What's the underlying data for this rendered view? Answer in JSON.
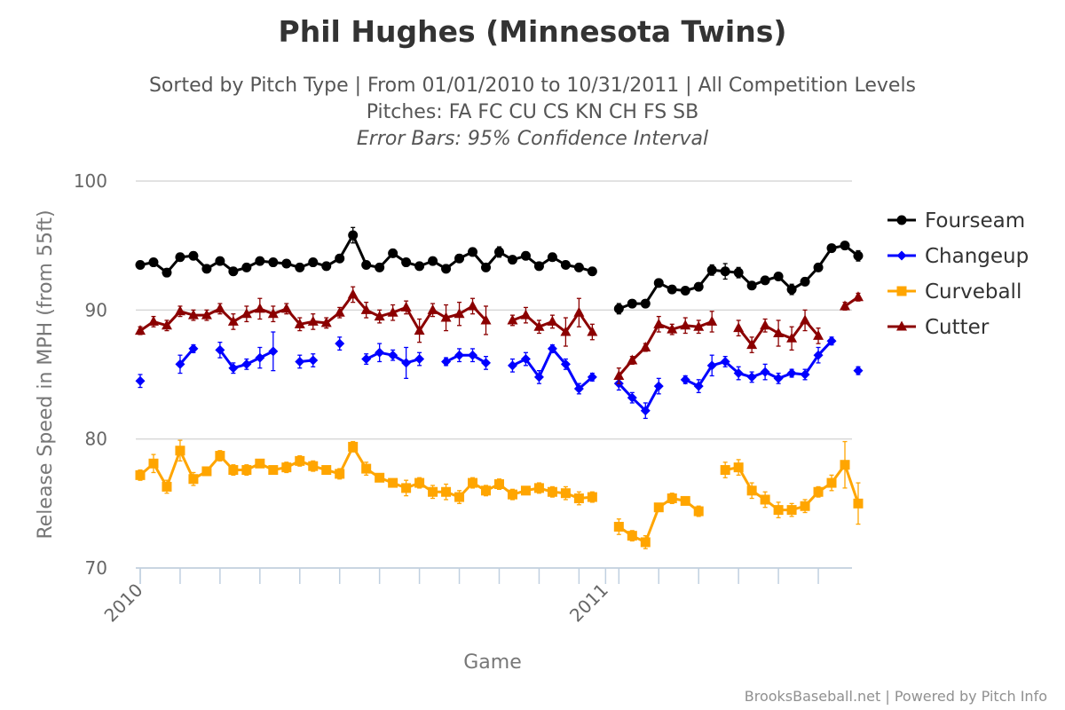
{
  "header": {
    "title": "Phil Hughes (Minnesota Twins)",
    "subtitle_line1": "Sorted by Pitch Type | From 01/01/2010 to 10/31/2011 | All Competition Levels",
    "subtitle_line2": "Pitches: FA FC CU CS KN CH FS SB",
    "subtitle_line3": "Error Bars: 95% Confidence Interval"
  },
  "credits": "BrooksBaseball.net | Powered by Pitch Info",
  "chart_data": {
    "type": "line",
    "title": "Phil Hughes (Minnesota Twins)",
    "xlabel": "Game",
    "ylabel": "Release Speed in MPH (from 55ft)",
    "ylim": [
      70,
      100
    ],
    "yticks": [
      70,
      80,
      90,
      100
    ],
    "xlim": [
      0,
      53
    ],
    "xticks": [
      {
        "x": 0,
        "label": "2010"
      },
      {
        "x": 35,
        "label": "2011"
      }
    ],
    "grid": true,
    "legend": "right",
    "series": [
      {
        "name": "Fourseam",
        "color": "#000000",
        "marker": "circle",
        "values": [
          93.5,
          93.7,
          92.9,
          94.1,
          94.2,
          93.2,
          93.8,
          93.0,
          93.3,
          93.8,
          93.7,
          93.6,
          93.3,
          93.7,
          93.4,
          94.0,
          95.8,
          93.5,
          93.3,
          94.4,
          93.7,
          93.4,
          93.8,
          93.2,
          94.0,
          94.5,
          93.3,
          94.5,
          93.9,
          94.2,
          93.4,
          94.1,
          93.5,
          93.3,
          93.0,
          null,
          90.1,
          90.5,
          90.5,
          92.1,
          91.6,
          91.5,
          91.8,
          93.1,
          93.0,
          92.9,
          91.9,
          92.3,
          92.6,
          91.6,
          92.2,
          93.3,
          94.8,
          95.0,
          94.2
        ],
        "errors": [
          0.3,
          0.3,
          0.3,
          0.3,
          0.3,
          0.3,
          0.3,
          0.3,
          0.3,
          0.3,
          0.3,
          0.3,
          0.3,
          0.3,
          0.3,
          0.3,
          0.6,
          0.3,
          0.3,
          0.3,
          0.3,
          0.3,
          0.3,
          0.3,
          0.3,
          0.3,
          0.3,
          0.4,
          0.3,
          0.3,
          0.3,
          0.3,
          0.3,
          0.3,
          0.3,
          null,
          0.4,
          0.3,
          0.3,
          0.3,
          0.3,
          0.3,
          0.3,
          0.4,
          0.6,
          0.4,
          0.3,
          0.3,
          0.3,
          0.4,
          0.3,
          0.3,
          0.3,
          0.3,
          0.4
        ]
      },
      {
        "name": "Changeup",
        "color": "#0000ff",
        "marker": "diamond",
        "values": [
          84.5,
          null,
          null,
          85.8,
          87.0,
          null,
          86.9,
          85.5,
          85.8,
          86.3,
          86.8,
          null,
          86.0,
          86.1,
          null,
          87.4,
          null,
          86.2,
          86.7,
          86.5,
          85.9,
          86.2,
          null,
          86.0,
          86.5,
          86.5,
          85.9,
          null,
          85.7,
          86.2,
          84.8,
          87.0,
          85.8,
          83.9,
          84.8,
          null,
          84.3,
          83.2,
          82.2,
          84.1,
          null,
          84.6,
          84.1,
          85.7,
          86.0,
          85.1,
          84.8,
          85.2,
          84.7,
          85.1,
          85.0,
          86.5,
          87.6,
          null,
          85.3
        ],
        "errors": [
          0.5,
          null,
          null,
          0.7,
          0.3,
          null,
          0.6,
          0.4,
          0.4,
          0.8,
          1.5,
          null,
          0.5,
          0.5,
          null,
          0.5,
          null,
          0.4,
          0.7,
          0.4,
          1.2,
          0.5,
          null,
          0.3,
          0.5,
          0.5,
          0.5,
          null,
          0.5,
          0.5,
          0.5,
          0.3,
          0.4,
          0.4,
          0.3,
          null,
          0.5,
          0.4,
          0.6,
          0.6,
          null,
          0.3,
          0.5,
          0.8,
          0.4,
          0.5,
          0.4,
          0.6,
          0.4,
          0.3,
          0.4,
          0.6,
          0.3,
          null,
          0.3
        ]
      },
      {
        "name": "Curveball",
        "color": "#ffa500",
        "marker": "square",
        "values": [
          77.2,
          78.1,
          76.3,
          79.1,
          76.9,
          77.5,
          78.7,
          77.6,
          77.6,
          78.1,
          77.6,
          77.8,
          78.3,
          77.9,
          77.6,
          77.3,
          79.4,
          77.7,
          77.0,
          76.6,
          76.2,
          76.6,
          75.9,
          75.9,
          75.5,
          76.6,
          76.0,
          76.5,
          75.7,
          76.0,
          76.2,
          75.9,
          75.8,
          75.4,
          75.5,
          null,
          73.2,
          72.5,
          72.0,
          74.7,
          75.4,
          75.2,
          74.4,
          null,
          77.6,
          77.8,
          76.0,
          75.3,
          74.5,
          74.5,
          74.8,
          75.9,
          76.6,
          78.0,
          75.0
        ],
        "errors": [
          0.4,
          0.7,
          0.5,
          0.8,
          0.5,
          0.3,
          0.4,
          0.4,
          0.4,
          0.3,
          0.3,
          0.4,
          0.4,
          0.4,
          0.3,
          0.4,
          0.4,
          0.5,
          0.3,
          0.3,
          0.6,
          0.4,
          0.5,
          0.6,
          0.5,
          0.4,
          0.4,
          0.4,
          0.4,
          0.3,
          0.4,
          0.4,
          0.5,
          0.5,
          0.4,
          null,
          0.6,
          0.4,
          0.5,
          0.3,
          0.4,
          0.3,
          0.4,
          null,
          0.6,
          0.6,
          0.6,
          0.6,
          0.6,
          0.5,
          0.5,
          0.4,
          0.6,
          1.8,
          1.6
        ]
      },
      {
        "name": "Cutter",
        "color": "#8b0000",
        "marker": "triangle",
        "values": [
          88.4,
          89.1,
          88.8,
          89.9,
          89.6,
          89.6,
          90.1,
          89.1,
          89.7,
          90.1,
          89.7,
          90.1,
          88.9,
          89.1,
          89.0,
          89.8,
          91.2,
          90.0,
          89.5,
          89.8,
          90.2,
          88.4,
          90.0,
          89.4,
          89.7,
          90.3,
          89.2,
          null,
          89.2,
          89.6,
          88.7,
          89.1,
          88.3,
          89.8,
          88.3,
          null,
          84.9,
          86.1,
          87.1,
          88.9,
          88.5,
          88.8,
          88.7,
          89.1,
          null,
          88.6,
          87.3,
          88.8,
          88.2,
          87.8,
          89.2,
          88.0,
          null,
          90.3,
          91.0
        ],
        "errors": [
          0.3,
          0.4,
          0.4,
          0.4,
          0.4,
          0.4,
          0.4,
          0.6,
          0.6,
          0.8,
          0.6,
          0.4,
          0.5,
          0.6,
          0.4,
          0.4,
          0.6,
          0.6,
          0.5,
          0.6,
          0.5,
          0.9,
          0.5,
          1.0,
          0.9,
          0.6,
          1.1,
          null,
          0.4,
          0.6,
          0.5,
          0.5,
          1.1,
          1.1,
          0.6,
          null,
          0.6,
          0.3,
          0.3,
          0.6,
          0.4,
          0.6,
          0.5,
          0.8,
          null,
          0.6,
          0.6,
          0.5,
          1.0,
          0.9,
          0.8,
          0.6,
          null,
          0.3,
          0.3
        ]
      }
    ]
  }
}
